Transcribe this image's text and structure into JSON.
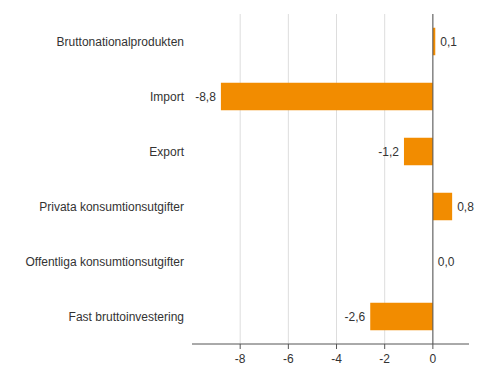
{
  "chart_data": {
    "type": "bar",
    "orientation": "horizontal",
    "categories": [
      "Fast bruttoinvestering",
      "Offentliga konsumtionsutgifter",
      "Privata konsumtionsutgifter",
      "Export",
      "Import",
      "Bruttonationalprodukten"
    ],
    "values": [
      -2.6,
      0.0,
      0.8,
      -1.2,
      -8.8,
      0.1
    ],
    "value_labels": [
      "-2,6",
      "0,0",
      "0,8",
      "-1,2",
      "-8,8",
      "0,1"
    ],
    "color": "#F28C00",
    "xlim": [
      -10,
      1.5
    ],
    "xticks": [
      -8,
      -6,
      -4,
      -2,
      0
    ],
    "grid": true,
    "data_labels": true
  }
}
